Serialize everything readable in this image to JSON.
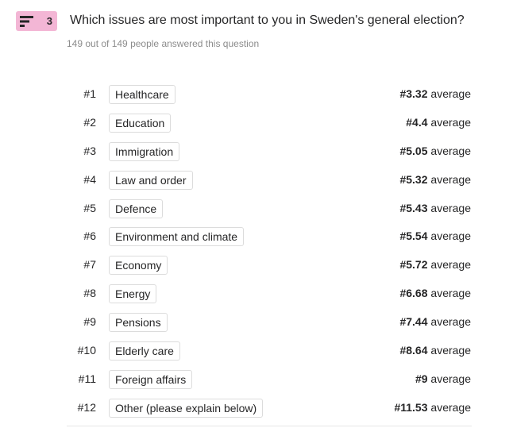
{
  "question": {
    "number": "3",
    "badge_icon": "ranking-icon",
    "badge_color": "#f3b6d5",
    "title": "Which issues are most important to you in Sweden's general election?",
    "responses": "149 out of 149 people answered this question"
  },
  "rankings": [
    {
      "rank": "#1",
      "label": "Healthcare",
      "average_value": "#3.32",
      "average_word": "average"
    },
    {
      "rank": "#2",
      "label": "Education",
      "average_value": "#4.4",
      "average_word": "average"
    },
    {
      "rank": "#3",
      "label": "Immigration",
      "average_value": "#5.05",
      "average_word": "average"
    },
    {
      "rank": "#4",
      "label": "Law and order",
      "average_value": "#5.32",
      "average_word": "average"
    },
    {
      "rank": "#5",
      "label": "Defence",
      "average_value": "#5.43",
      "average_word": "average"
    },
    {
      "rank": "#6",
      "label": "Environment and climate",
      "average_value": "#5.54",
      "average_word": "average"
    },
    {
      "rank": "#7",
      "label": "Economy",
      "average_value": "#5.72",
      "average_word": "average"
    },
    {
      "rank": "#8",
      "label": "Energy",
      "average_value": "#6.68",
      "average_word": "average"
    },
    {
      "rank": "#9",
      "label": "Pensions",
      "average_value": "#7.44",
      "average_word": "average"
    },
    {
      "rank": "#10",
      "label": "Elderly care",
      "average_value": "#8.64",
      "average_word": "average"
    },
    {
      "rank": "#11",
      "label": "Foreign affairs",
      "average_value": "#9",
      "average_word": "average"
    },
    {
      "rank": "#12",
      "label": "Other (please explain below)",
      "average_value": "#11.53",
      "average_word": "average"
    }
  ]
}
